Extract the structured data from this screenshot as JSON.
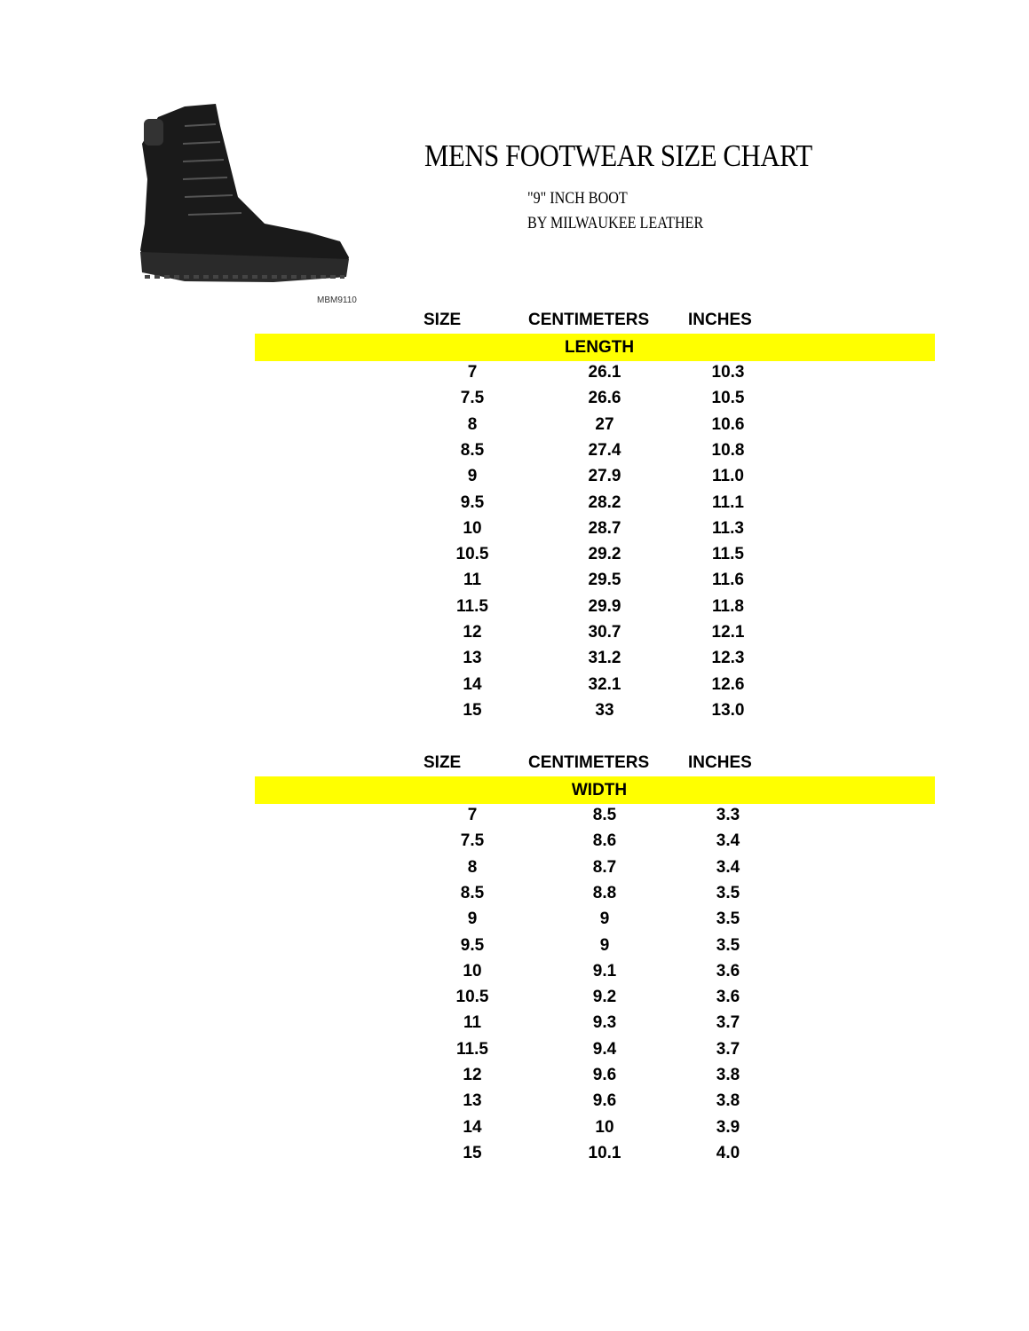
{
  "title": "MENS FOOTWEAR SIZE CHART",
  "subtitle_line1": "\"9\" INCH BOOT",
  "subtitle_line2": "BY MILWAUKEE LEATHER",
  "model_number": "MBM9110",
  "highlight_color": "#ffff00",
  "columns": {
    "size": "SIZE",
    "cm": "CENTIMETERS",
    "inches": "INCHES"
  },
  "tables": [
    {
      "label": "LENGTH",
      "rows": [
        [
          "7",
          "26.1",
          "10.3"
        ],
        [
          "7.5",
          "26.6",
          "10.5"
        ],
        [
          "8",
          "27",
          "10.6"
        ],
        [
          "8.5",
          "27.4",
          "10.8"
        ],
        [
          "9",
          "27.9",
          "11.0"
        ],
        [
          "9.5",
          "28.2",
          "11.1"
        ],
        [
          "10",
          "28.7",
          "11.3"
        ],
        [
          "10.5",
          "29.2",
          "11.5"
        ],
        [
          "11",
          "29.5",
          "11.6"
        ],
        [
          "11.5",
          "29.9",
          "11.8"
        ],
        [
          "12",
          "30.7",
          "12.1"
        ],
        [
          "13",
          "31.2",
          "12.3"
        ],
        [
          "14",
          "32.1",
          "12.6"
        ],
        [
          "15",
          "33",
          "13.0"
        ]
      ]
    },
    {
      "label": "WIDTH",
      "rows": [
        [
          "7",
          "8.5",
          "3.3"
        ],
        [
          "7.5",
          "8.6",
          "3.4"
        ],
        [
          "8",
          "8.7",
          "3.4"
        ],
        [
          "8.5",
          "8.8",
          "3.5"
        ],
        [
          "9",
          "9",
          "3.5"
        ],
        [
          "9.5",
          "9",
          "3.5"
        ],
        [
          "10",
          "9.1",
          "3.6"
        ],
        [
          "10.5",
          "9.2",
          "3.6"
        ],
        [
          "11",
          "9.3",
          "3.7"
        ],
        [
          "11.5",
          "9.4",
          "3.7"
        ],
        [
          "12",
          "9.6",
          "3.8"
        ],
        [
          "13",
          "9.6",
          "3.8"
        ],
        [
          "14",
          "10",
          "3.9"
        ],
        [
          "15",
          "10.1",
          "4.0"
        ]
      ]
    }
  ]
}
